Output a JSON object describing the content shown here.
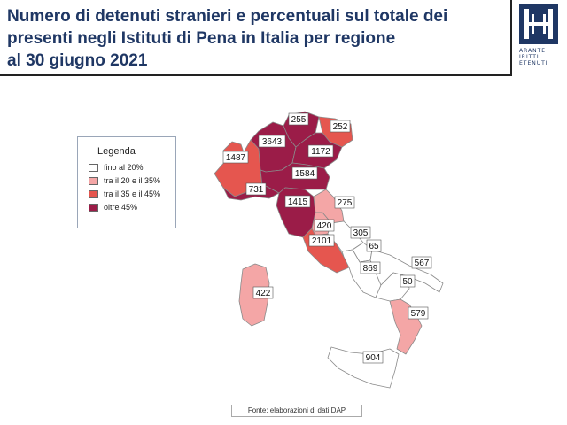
{
  "title": {
    "line1": "Numero di detenuti stranieri e percentuali sul totale dei",
    "line2": "presenti negli Istituti di Pena in Italia  per regione",
    "line3": "al 30 giugno 2021"
  },
  "logo": {
    "row1": "ARANTE",
    "row2": "IRITTI",
    "row3": "ETENUTI"
  },
  "legend": {
    "title": "Legenda",
    "items": [
      {
        "label": "fino al 20%",
        "color": "#ffffff"
      },
      {
        "label": "tra il 20 e il 35%",
        "color": "#f4a6a6"
      },
      {
        "label": "tra il 35 e il 45%",
        "color": "#e5564f"
      },
      {
        "label": "oltre 45%",
        "color": "#9b1c48"
      }
    ]
  },
  "regions": [
    {
      "value": "255",
      "class": "oltre 45%"
    },
    {
      "value": "252",
      "class": "tra il 35 e il 45%"
    },
    {
      "value": "3643",
      "class": "oltre 45%"
    },
    {
      "value": "1172",
      "class": "oltre 45%"
    },
    {
      "value": "1487",
      "class": "tra il 35 e il 45%"
    },
    {
      "value": "1584",
      "class": "oltre 45%"
    },
    {
      "value": "731",
      "class": "oltre 45%"
    },
    {
      "value": "1415",
      "class": "oltre 45%"
    },
    {
      "value": "275",
      "class": "tra il 20 e il 35%"
    },
    {
      "value": "420",
      "class": "tra il 20 e il 35%"
    },
    {
      "value": "2101",
      "class": "tra il 35 e il 45%"
    },
    {
      "value": "305",
      "class": "fino al 20%"
    },
    {
      "value": "65",
      "class": "fino al 20%"
    },
    {
      "value": "567",
      "class": "fino al 20%"
    },
    {
      "value": "869",
      "class": "fino al 20%"
    },
    {
      "value": "50",
      "class": "fino al 20%"
    },
    {
      "value": "422",
      "class": "tra il 20 e il 35%"
    },
    {
      "value": "579",
      "class": "tra il 20 e il 35%"
    },
    {
      "value": "904",
      "class": "fino al 20%"
    }
  ],
  "source": "Fonte: elaborazioni di dati DAP"
}
